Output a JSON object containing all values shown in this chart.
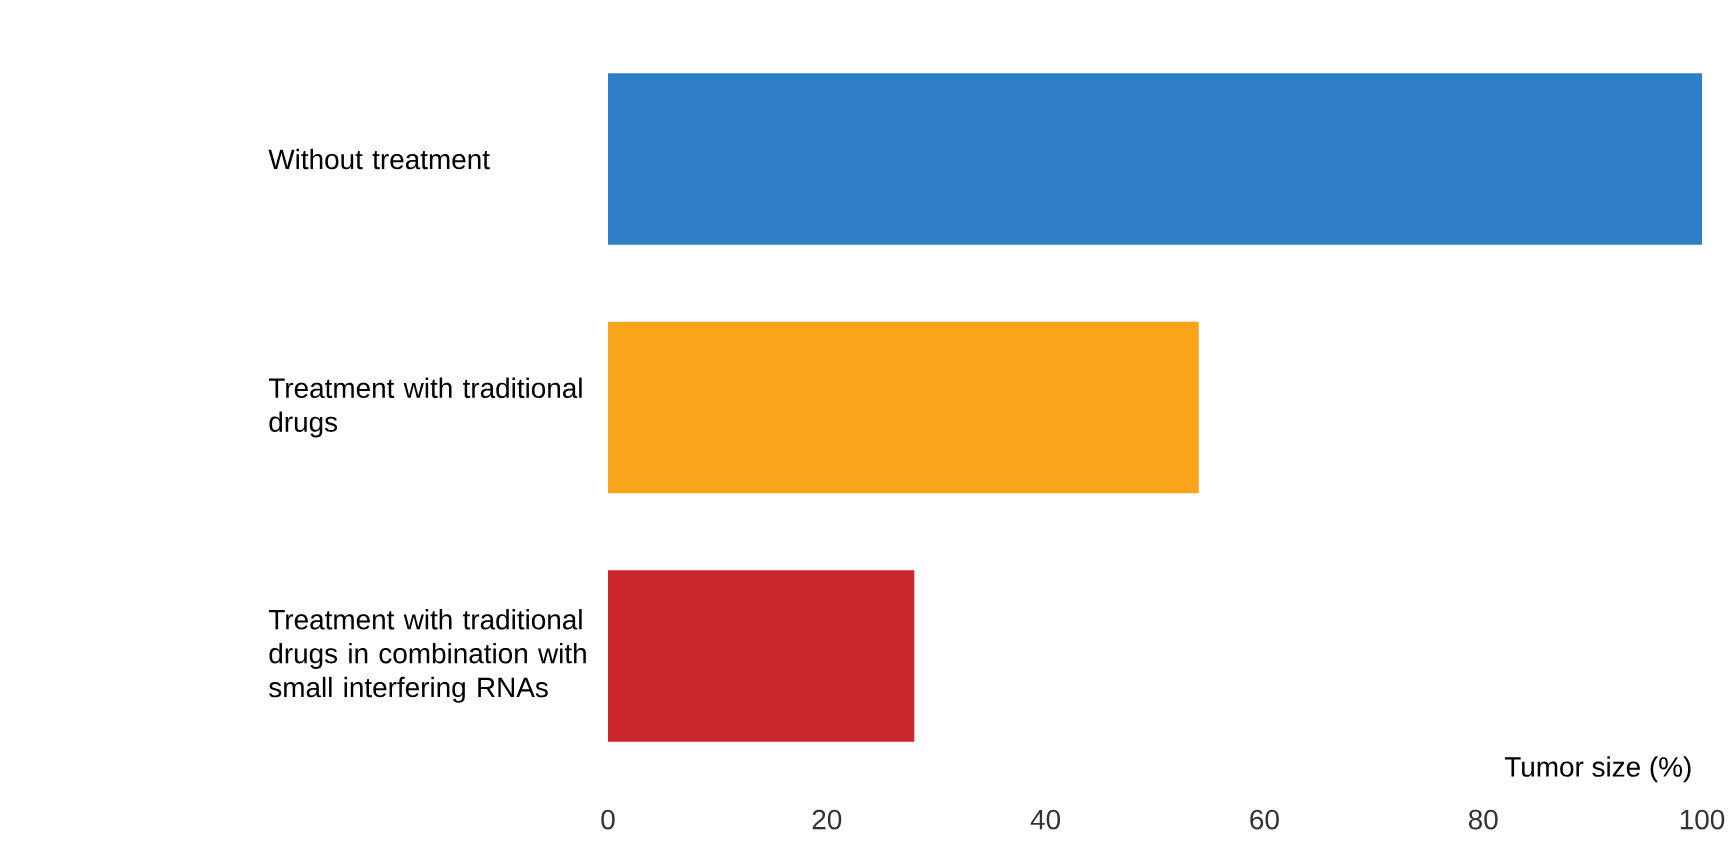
{
  "chart_data": {
    "type": "bar",
    "orientation": "horizontal",
    "xlabel": "Tumor size (%)",
    "categories": [
      "Without treatment",
      "Treatment with traditional drugs",
      "Treatment with traditional drugs in combination with small interfering RNAs"
    ],
    "values": [
      100,
      54,
      28
    ],
    "colors": [
      "#2f7fc8",
      "#f9a51b",
      "#c9262e"
    ],
    "xlim": [
      0,
      100
    ],
    "xticks": [
      0,
      20,
      40,
      60,
      80,
      100
    ]
  }
}
